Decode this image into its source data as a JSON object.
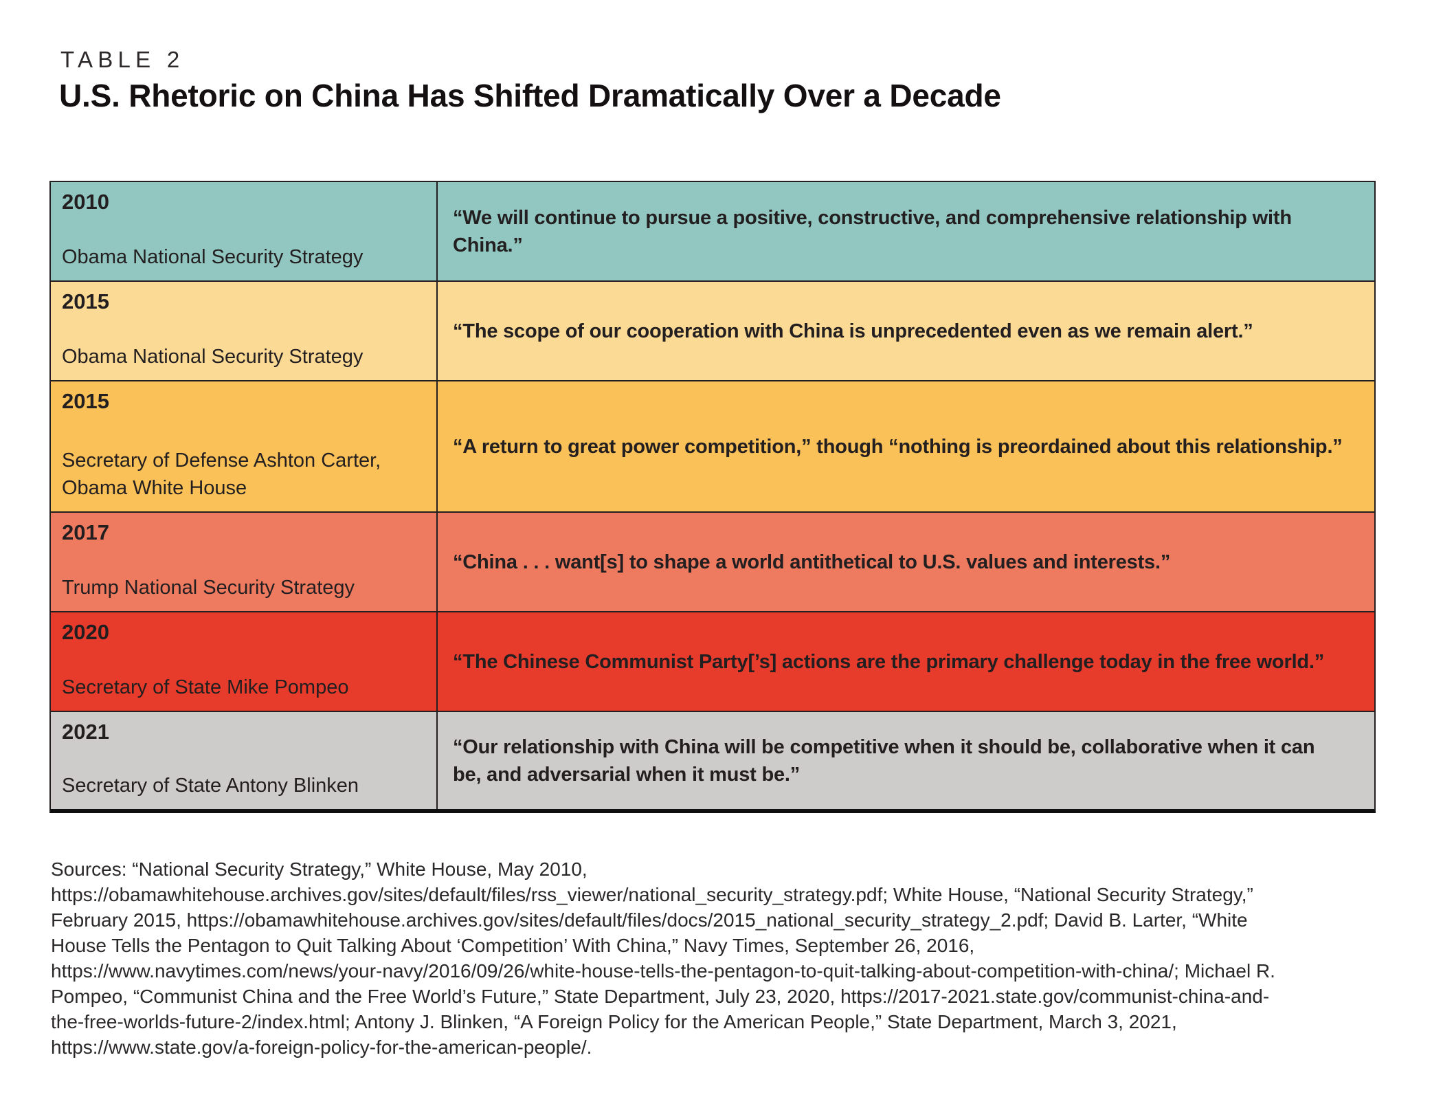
{
  "page": {
    "kicker": "TABLE 2",
    "title": "U.S. Rhetoric on China Has Shifted Dramatically Over a Decade"
  },
  "table": {
    "rows": [
      {
        "year": "2010",
        "source": "Obama National Security Strategy",
        "quote": "“We will continue to pursue a positive, constructive, and comprehensive relationship with China.”",
        "bg": "#92c7c1"
      },
      {
        "year": "2015",
        "source": "Obama National Security Strategy",
        "quote": "“The scope of our cooperation with China is unprecedented even as we remain alert.”",
        "bg": "#fbda96"
      },
      {
        "year": "2015",
        "source": "Secretary of Defense Ashton Carter,\nObama White House",
        "quote": "“A return to great power competition,” though “nothing is preordained about this relationship.”",
        "bg": "#f9c157"
      },
      {
        "year": "2017",
        "source": "Trump National Security Strategy",
        "quote": "“China . . . want[s] to shape a world antithetical to U.S. values and interests.”",
        "bg": "#ee7a60"
      },
      {
        "year": "2020",
        "source": "Secretary of State Mike Pompeo",
        "quote": "“The Chinese Communist Party[’s] actions are the primary challenge today in the free world.”",
        "bg": "#e73b2c"
      },
      {
        "year": "2021",
        "source": "Secretary of State Antony Blinken",
        "quote": "“Our relationship with China will be competitive when it should be, collaborative when it can be, and adversarial when it must be.”",
        "bg": "#cecccb"
      }
    ]
  },
  "sources_note": "Sources: “National Security Strategy,” White House, May 2010, https://obamawhitehouse.archives.gov/sites/default/files/rss_viewer/national_security_strategy.pdf; White House, “National Security Strategy,” February 2015, https://obamawhitehouse.archives.gov/sites/default/files/docs/2015_national_security_strategy_2.pdf; David B. Larter, “White House Tells the Pentagon to Quit Talking About ‘Competition’ With China,” Navy Times, September 26, 2016, https://www.navytimes.com/news/your-navy/2016/09/26/white-house-tells-the-pentagon-to-quit-talking-about-competition-with-china/; Michael R. Pompeo, “Communist China and the Free World’s Future,” State Department, July 23, 2020, https://2017-2021.state.gov/communist-china-and-the-free-worlds-future-2/index.html; Antony J. Blinken, “A Foreign Policy for the American People,” State Department, March 3, 2021, https://www.state.gov/a-foreign-policy-for-the-american-people/."
}
